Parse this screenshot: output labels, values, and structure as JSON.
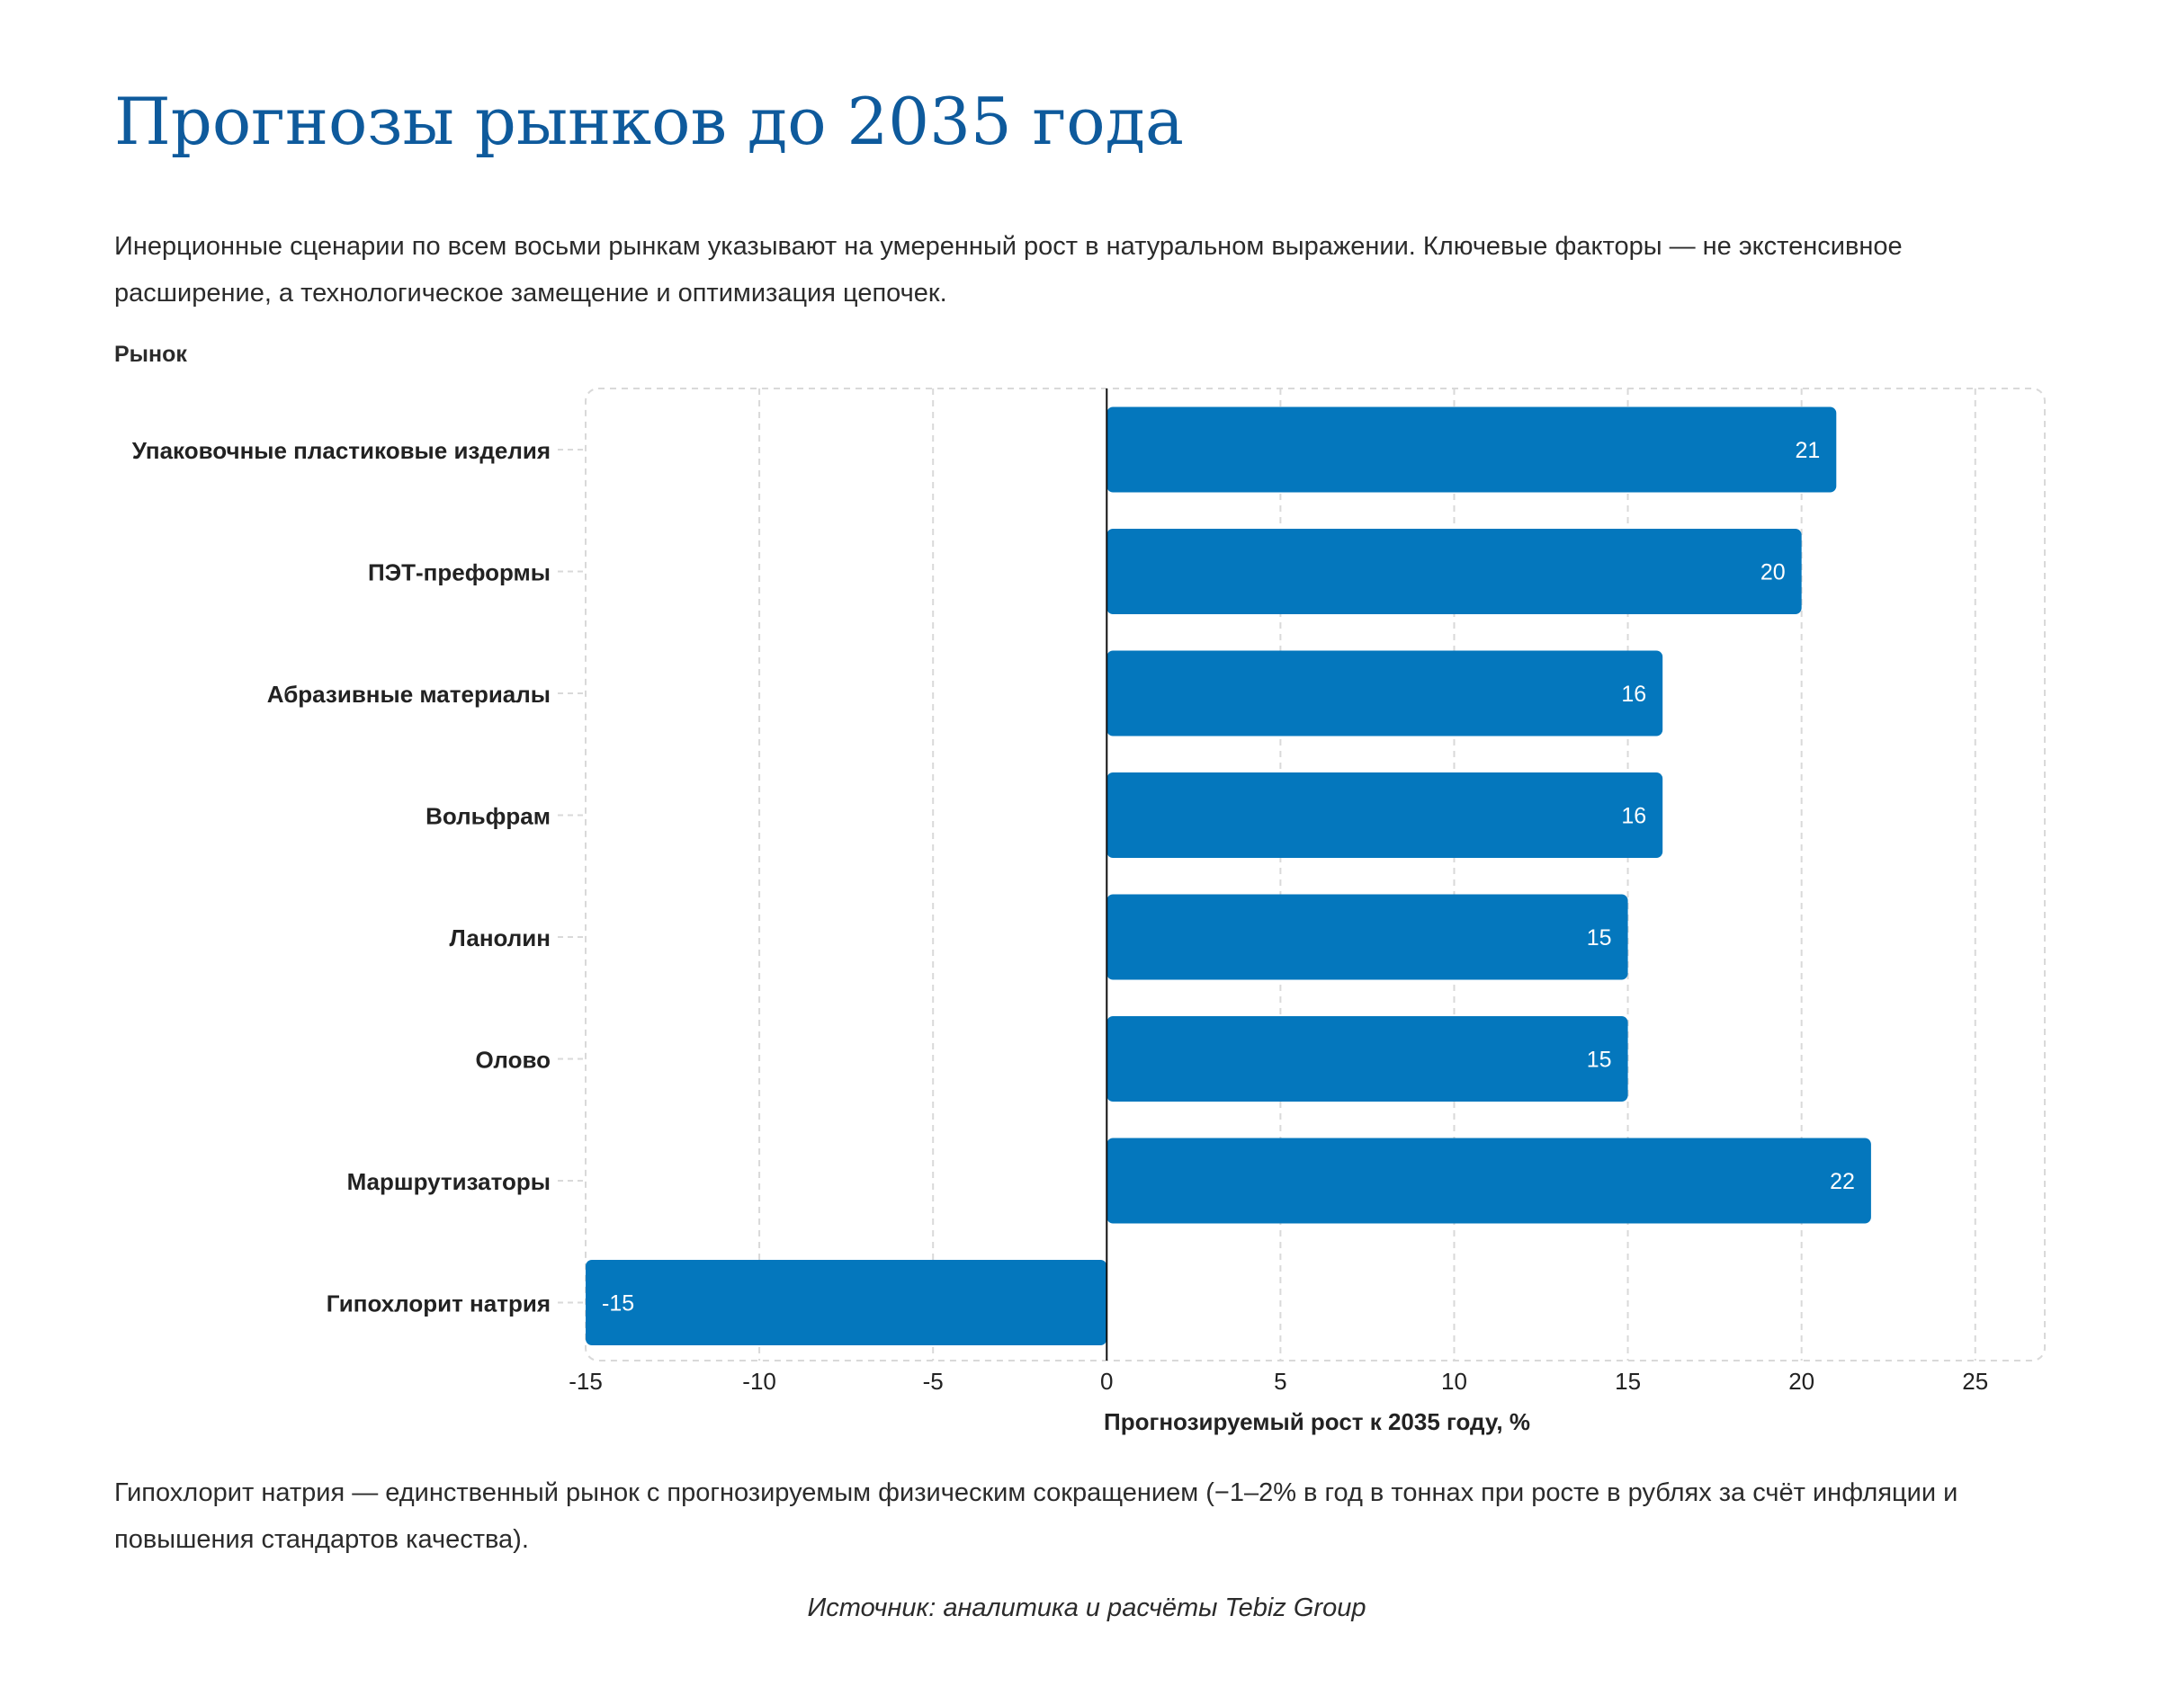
{
  "page": {
    "title": "Прогнозы рынков до 2035 года",
    "intro": "Инерционные сценарии по всем восьми рынкам указывают на умеренный рост в натуральном выражении. Ключевые факторы — не экстенсивное расширение, а технологическое замещение и оптимизация цепочек.",
    "footnote": "Гипохлорит натрия — единственный рынок с прогнозируемым физическим сокращением (−1–2% в год в тоннах при росте в рублях за счёт инфляции и повышения стандартов качества).",
    "source": "Источник: аналитика и расчёты Tebiz Group"
  },
  "chart_data": {
    "type": "bar",
    "orientation": "horizontal",
    "categories": [
      "Упаковочные пластиковые изделия",
      "ПЭТ-преформы",
      "Абразивные материалы",
      "Вольфрам",
      "Ланолин",
      "Олово",
      "Маршрутизаторы",
      "Гипохлорит натрия"
    ],
    "values": [
      21,
      20,
      16,
      16,
      15,
      15,
      22,
      -15
    ],
    "xlabel": "Прогнозируемый рост к 2035 году, %",
    "ylabel": "Рынок",
    "xlim": [
      -15,
      27
    ],
    "xticks": [
      -15,
      -10,
      -5,
      0,
      5,
      10,
      15,
      20,
      25
    ],
    "grid": true,
    "data_labels": true,
    "colors": {
      "bar": "#0477bd",
      "grid": "#d9d9d9",
      "zero_line": "#111111",
      "title": "#0e5a9c"
    }
  }
}
